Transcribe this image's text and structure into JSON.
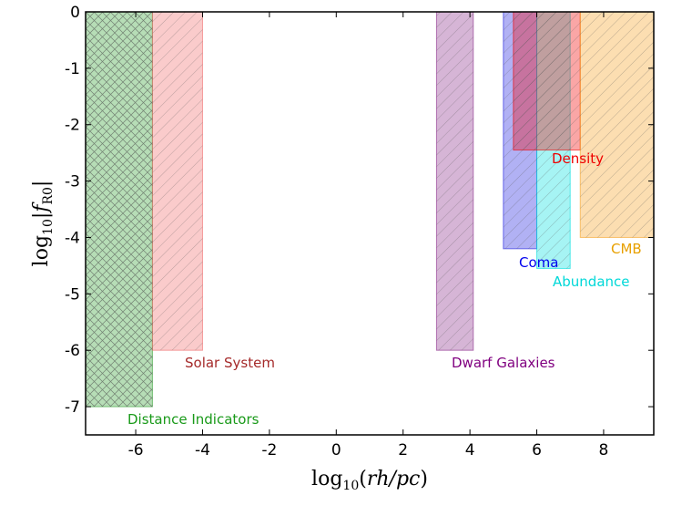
{
  "chart_data": {
    "type": "range-bar",
    "xlabel": "log10(rh/pc)",
    "ylabel": "log10|fR0|",
    "xlim": [
      -7.5,
      9.5
    ],
    "ylim": [
      -7.5,
      0
    ],
    "xticks": [
      "-6",
      "-4",
      "-2",
      "0",
      "2",
      "4",
      "6",
      "8"
    ],
    "xtick_values": [
      -6,
      -4,
      -2,
      0,
      2,
      4,
      6,
      8
    ],
    "yticks": [
      "0",
      "-1",
      "-2",
      "-3",
      "-4",
      "-5",
      "-6",
      "-7"
    ],
    "ytick_values": [
      0,
      -1,
      -2,
      -3,
      -4,
      -5,
      -6,
      -7
    ],
    "regions": [
      {
        "name": "Distance Indicators",
        "x": [
          -7.5,
          -5.5
        ],
        "y": [
          -7.0,
          0
        ],
        "color": "#2e9e2e",
        "hatch": "cross"
      },
      {
        "name": "Solar System",
        "x": [
          -5.5,
          -4.0
        ],
        "y": [
          -6.0,
          0
        ],
        "color": "#f06a6a",
        "hatch": "diag"
      },
      {
        "name": "Dwarf Galaxies",
        "x": [
          3.0,
          4.1
        ],
        "y": [
          -6.0,
          0
        ],
        "color": "#8a2a8a",
        "hatch": "diag"
      },
      {
        "name": "Coma",
        "x": [
          5.0,
          6.0
        ],
        "y": [
          -4.2,
          0
        ],
        "color": "#2020e0",
        "hatch": "diag"
      },
      {
        "name": "Abundance",
        "x": [
          6.0,
          7.0
        ],
        "y": [
          -4.55,
          0
        ],
        "color": "#00e0e0",
        "hatch": "diag"
      },
      {
        "name": "Density",
        "x": [
          5.3,
          7.3
        ],
        "y": [
          -2.45,
          0
        ],
        "color": "#f00000",
        "hatch": "diag"
      },
      {
        "name": "CMB",
        "x": [
          7.3,
          9.5
        ],
        "y": [
          -4.0,
          0
        ],
        "color": "#f5a020",
        "hatch": "diag"
      }
    ],
    "labels": [
      {
        "text": "Distance Indicators",
        "color": "#1a9a1a"
      },
      {
        "text": "Solar System",
        "color": "#a52a2a"
      },
      {
        "text": "Dwarf Galaxies",
        "color": "#800080"
      },
      {
        "text": "Coma",
        "color": "#0000ee"
      },
      {
        "text": "Abundance",
        "color": "#00d8d8"
      },
      {
        "text": "Density",
        "color": "#ee0000"
      },
      {
        "text": "CMB",
        "color": "#e8a000"
      }
    ]
  }
}
